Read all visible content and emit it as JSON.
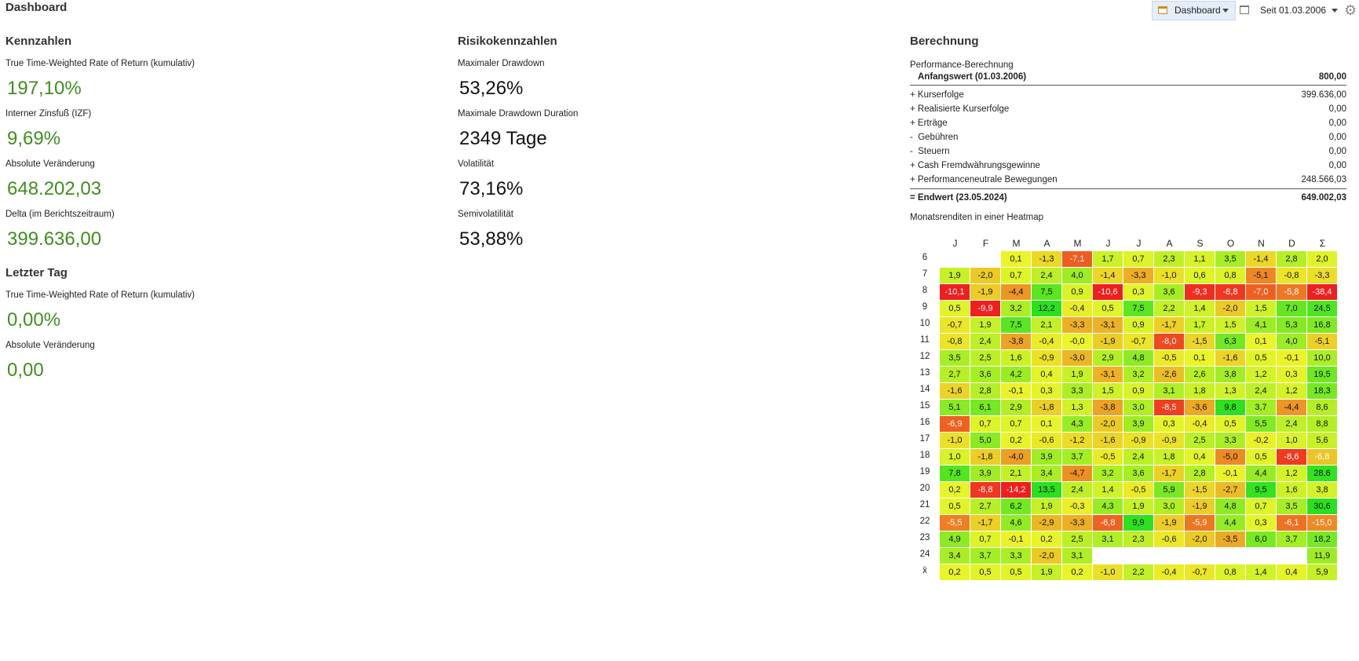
{
  "page_title": "Dashboard",
  "toolbar": {
    "dashboard_label": "Dashboard",
    "period_label": "Seit 01.03.2006"
  },
  "kennzahlen": {
    "heading": "Kennzahlen",
    "items": [
      {
        "label": "True Time-Weighted Rate of Return (kumulativ)",
        "value": "197,10%"
      },
      {
        "label": "Interner Zinsfuß (IZF)",
        "value": "9,69%"
      },
      {
        "label": "Absolute Veränderung",
        "value": "648.202,03"
      },
      {
        "label": "Delta (im Berichtszeitraum)",
        "value": "399.636,00"
      }
    ]
  },
  "letzter_tag": {
    "heading": "Letzter Tag",
    "items": [
      {
        "label": "True Time-Weighted Rate of Return (kumulativ)",
        "value": "0,00%"
      },
      {
        "label": "Absolute Veränderung",
        "value": "0,00"
      }
    ]
  },
  "risiko": {
    "heading": "Risikokennzahlen",
    "items": [
      {
        "label": "Maximaler Drawdown",
        "value": "53,26%"
      },
      {
        "label": "Maximale Drawdown Duration",
        "value": "2349 Tage"
      },
      {
        "label": "Volatilität",
        "value": "73,16%"
      },
      {
        "label": "Semivolatilität",
        "value": "53,88%"
      }
    ]
  },
  "berechnung": {
    "heading": "Berechnung",
    "subtitle": "Performance-Berechnung",
    "start": {
      "label": "Anfangswert (01.03.2006)",
      "value": "800,00"
    },
    "rows": [
      {
        "label": "+ Kurserfolge",
        "value": "399.636,00"
      },
      {
        "label": "+ Realisierte Kurserfolge",
        "value": "0,00"
      },
      {
        "label": "+ Erträge",
        "value": "0,00"
      },
      {
        "label": "-  Gebühren",
        "value": "0,00"
      },
      {
        "label": "-  Steuern",
        "value": "0,00"
      },
      {
        "label": "+ Cash Fremdwährungsgewinne",
        "value": "0,00"
      },
      {
        "label": "+ Performanceneutrale Bewegungen",
        "value": "248.566,03"
      }
    ],
    "end": {
      "label": "= Endwert (23.05.2024)",
      "value": "649.002,03"
    }
  },
  "heatmap": {
    "title": "Monatsrenditen in einer Heatmap",
    "columns": [
      "J",
      "F",
      "M",
      "A",
      "M",
      "J",
      "J",
      "A",
      "S",
      "O",
      "N",
      "D",
      "Σ"
    ],
    "rows": [
      {
        "label": "6",
        "cells": [
          "",
          "",
          "0,1",
          "-1,3",
          "-7,1",
          "1,7",
          "0,7",
          "2,3",
          "1,1",
          "3,5",
          "-1,4",
          "2,8",
          "2,0"
        ]
      },
      {
        "label": "7",
        "cells": [
          "1,9",
          "-2,0",
          "0,7",
          "2,4",
          "4,0",
          "-1,4",
          "-3,3",
          "-1,0",
          "0,6",
          "0,8",
          "-5,1",
          "-0,8",
          "-3,3"
        ]
      },
      {
        "label": "8",
        "cells": [
          "-10,1",
          "-1,9",
          "-4,4",
          "7,5",
          "0,9",
          "-10,6",
          "0,3",
          "3,6",
          "-9,3",
          "-8,8",
          "-7,0",
          "-5,8",
          "-38,4"
        ]
      },
      {
        "label": "9",
        "cells": [
          "0,5",
          "-9,9",
          "3,2",
          "12,2",
          "-0,4",
          "0,5",
          "7,5",
          "2,2",
          "1,4",
          "-2,0",
          "1,5",
          "7,0",
          "24,5"
        ]
      },
      {
        "label": "10",
        "cells": [
          "-0,7",
          "1,9",
          "7,5",
          "2,1",
          "-3,3",
          "-3,1",
          "0,9",
          "-1,7",
          "1,7",
          "1,5",
          "4,1",
          "5,3",
          "16,8"
        ]
      },
      {
        "label": "11",
        "cells": [
          "-0,8",
          "2,4",
          "-3,8",
          "-0,4",
          "-0,0",
          "-1,9",
          "-0,7",
          "-8,0",
          "-1,5",
          "6,3",
          "0,1",
          "4,0",
          "-5,1"
        ]
      },
      {
        "label": "12",
        "cells": [
          "3,5",
          "2,5",
          "1,6",
          "-0,9",
          "-3,0",
          "2,9",
          "4,8",
          "-0,5",
          "0,1",
          "-1,6",
          "0,5",
          "-0,1",
          "10,0"
        ]
      },
      {
        "label": "13",
        "cells": [
          "2,7",
          "3,6",
          "4,2",
          "0,4",
          "1,9",
          "-3,1",
          "3,2",
          "-2,6",
          "2,6",
          "3,8",
          "1,2",
          "0,3",
          "19,5"
        ]
      },
      {
        "label": "14",
        "cells": [
          "-1,6",
          "2,8",
          "-0,1",
          "0,3",
          "3,3",
          "1,5",
          "0,9",
          "3,1",
          "1,8",
          "1,3",
          "2,4",
          "1,2",
          "18,3"
        ]
      },
      {
        "label": "15",
        "cells": [
          "5,1",
          "6,1",
          "2,9",
          "-1,8",
          "1,3",
          "-3,8",
          "3,0",
          "-8,5",
          "-3,6",
          "9,8",
          "3,7",
          "-4,4",
          "8,6"
        ]
      },
      {
        "label": "16",
        "cells": [
          "-6,9",
          "0,7",
          "0,7",
          "0,1",
          "4,3",
          "-2,0",
          "3,9",
          "0,3",
          "-0,4",
          "0,5",
          "5,5",
          "2,4",
          "8,8"
        ]
      },
      {
        "label": "17",
        "cells": [
          "-1,0",
          "5,0",
          "0,2",
          "-0,6",
          "-1,2",
          "-1,6",
          "-0,9",
          "-0,9",
          "2,5",
          "3,3",
          "-0,2",
          "1,0",
          "5,6"
        ]
      },
      {
        "label": "18",
        "cells": [
          "1,0",
          "-1,8",
          "-4,0",
          "3,9",
          "3,7",
          "-0,5",
          "2,4",
          "1,8",
          "0,4",
          "-5,0",
          "0,5",
          "-8,6",
          "-6,8"
        ]
      },
      {
        "label": "19",
        "cells": [
          "7,8",
          "3,9",
          "2,1",
          "3,4",
          "-4,7",
          "3,2",
          "3,6",
          "-1,7",
          "2,8",
          "-0,1",
          "4,4",
          "1,2",
          "28,6"
        ]
      },
      {
        "label": "20",
        "cells": [
          "0,2",
          "-8,8",
          "-14,2",
          "13,5",
          "2,4",
          "1,4",
          "-0,5",
          "5,9",
          "-1,5",
          "-2,7",
          "9,5",
          "1,6",
          "3,8"
        ]
      },
      {
        "label": "21",
        "cells": [
          "0,5",
          "2,7",
          "6,2",
          "1,9",
          "-0,3",
          "4,3",
          "1,9",
          "3,0",
          "-1,9",
          "4,8",
          "0,7",
          "3,5",
          "30,6"
        ]
      },
      {
        "label": "22",
        "cells": [
          "-5,5",
          "-1,7",
          "4,6",
          "-2,9",
          "-3,3",
          "-6,8",
          "9,9",
          "-1,9",
          "-5,9",
          "4,4",
          "0,3",
          "-6,1",
          "-15,0"
        ]
      },
      {
        "label": "23",
        "cells": [
          "4,9",
          "0,7",
          "-0,1",
          "0,2",
          "2,5",
          "3,1",
          "2,3",
          "-0,6",
          "-2,0",
          "-3,5",
          "6,0",
          "3,7",
          "18,2"
        ]
      },
      {
        "label": "24",
        "cells": [
          "3,4",
          "3,7",
          "3,3",
          "-2,0",
          "3,1",
          "",
          "",
          "",
          "",
          "",
          "",
          "",
          "11,9"
        ]
      },
      {
        "label": "x̄",
        "cells": [
          "0,2",
          "0,5",
          "0,5",
          "1,9",
          "0,2",
          "-1,0",
          "2,2",
          "-0,4",
          "-0,7",
          "0,8",
          "1,4",
          "0,4",
          "5,9"
        ]
      }
    ]
  },
  "colors": {
    "positive_value": "#3f8f1e",
    "accent": "#e3eef9"
  }
}
